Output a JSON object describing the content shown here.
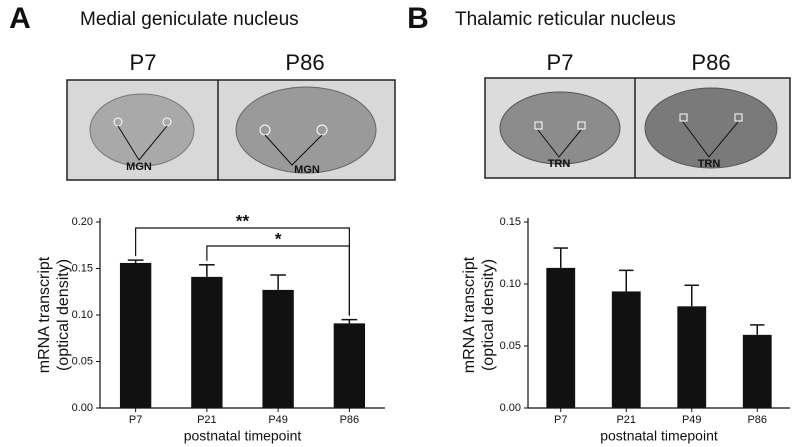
{
  "chart_data": [
    {
      "type": "bar",
      "panel": "A",
      "title": "Medial geniculate nucleus",
      "image_labels": [
        "P7",
        "P86"
      ],
      "region_label": "MGN",
      "ylabel": [
        "mRNA transcript",
        "(optical density)"
      ],
      "xlabel": "postnatal timepoint",
      "categories": [
        "P7",
        "P21",
        "P49",
        "P86"
      ],
      "values": [
        0.156,
        0.141,
        0.127,
        0.091
      ],
      "errors": [
        0.003,
        0.013,
        0.016,
        0.004
      ],
      "color": "#111111",
      "ylim": [
        0,
        0.2
      ],
      "yticks": [
        {
          "value": 0,
          "label": "0.00"
        },
        0.05,
        {
          "value": 0.1,
          "label": "0.10"
        },
        0.15,
        {
          "value": 0.2,
          "label": "0.20"
        }
      ],
      "annotations": [
        {
          "text": "**",
          "between": [
            "P7",
            "P86"
          ]
        },
        {
          "text": "*",
          "between": [
            "P21",
            "P86"
          ]
        }
      ]
    },
    {
      "type": "bar",
      "panel": "B",
      "title": "Thalamic reticular nucleus",
      "image_labels": [
        "P7",
        "P86"
      ],
      "region_label": "TRN",
      "ylabel": [
        "mRNA transcript",
        "(optical density)"
      ],
      "xlabel": "postnatal timepoint",
      "categories": [
        "P7",
        "P21",
        "P49",
        "P86"
      ],
      "values": [
        0.113,
        0.094,
        0.082,
        0.059
      ],
      "errors": [
        0.016,
        0.017,
        0.017,
        0.008
      ],
      "color": "#111111",
      "ylim": [
        0,
        0.15
      ],
      "yticks": [
        {
          "value": 0,
          "label": "0.00"
        },
        0.05,
        {
          "value": 0.1,
          "label": "0.10"
        },
        0.15
      ],
      "annotations": []
    }
  ]
}
